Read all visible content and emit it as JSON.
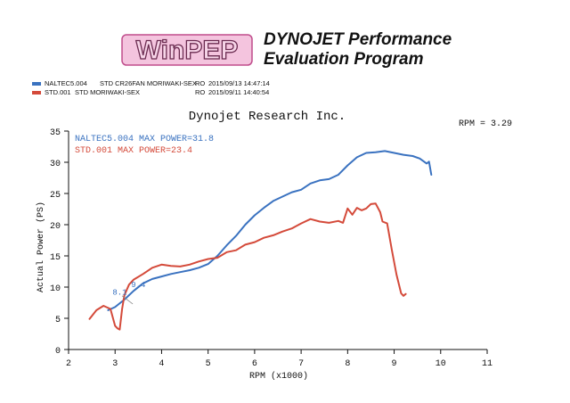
{
  "header": {
    "logo_text": "WinPEP",
    "subtitle_line1": "DYNOJET Performance",
    "subtitle_line2": "Evaluation Program"
  },
  "runs": [
    {
      "file": "NALTEC5.004",
      "desc": "STD CR26FAN MORIWAKI-SEX",
      "code": "RO",
      "date": "2015/09/13 14:47:14",
      "color": "#3a72c0"
    },
    {
      "file": "STD.001",
      "desc": "STD MORIWAKI-SEX",
      "code": "RO",
      "date": "2015/09/11 14:40:54",
      "color": "#d44a3a"
    }
  ],
  "chart_data": {
    "type": "line",
    "title": "Dynojet  Research  Inc.",
    "rpm_readout": "RPM = 3.29",
    "xlabel": "RPM (x1000)",
    "ylabel": "Actual Power (PS)",
    "xlim": [
      2,
      11
    ],
    "ylim": [
      0,
      35
    ],
    "xticks": [
      2,
      3,
      4,
      5,
      6,
      7,
      8,
      9,
      10,
      11
    ],
    "yticks": [
      0,
      5,
      10,
      15,
      20,
      25,
      30,
      35
    ],
    "grid": false,
    "legend": [
      {
        "label": "NALTEC5.004  MAX POWER=31.8",
        "color": "#3a72c0"
      },
      {
        "label": "STD.001  MAX POWER=23.4",
        "color": "#d44a3a"
      }
    ],
    "annotations": [
      {
        "text": "9.4",
        "x": 3.5,
        "y": 10.0,
        "color": "#3a72c0"
      },
      {
        "text": "8.1",
        "x": 3.1,
        "y": 8.8,
        "color": "#3a72c0"
      }
    ],
    "series": [
      {
        "name": "NALTEC5.004",
        "color": "#3a72c0",
        "x": [
          2.85,
          3.0,
          3.2,
          3.4,
          3.6,
          3.8,
          4.0,
          4.2,
          4.4,
          4.6,
          4.8,
          5.0,
          5.2,
          5.4,
          5.6,
          5.8,
          6.0,
          6.2,
          6.4,
          6.6,
          6.8,
          7.0,
          7.2,
          7.4,
          7.6,
          7.8,
          8.0,
          8.2,
          8.4,
          8.6,
          8.8,
          9.0,
          9.2,
          9.4,
          9.55,
          9.7,
          9.75,
          9.8
        ],
        "y": [
          6.3,
          6.8,
          8.0,
          9.4,
          10.6,
          11.3,
          11.7,
          12.1,
          12.4,
          12.7,
          13.1,
          13.7,
          15.0,
          16.7,
          18.2,
          20.0,
          21.5,
          22.7,
          23.8,
          24.5,
          25.2,
          25.6,
          26.6,
          27.1,
          27.3,
          28.0,
          29.5,
          30.8,
          31.5,
          31.6,
          31.8,
          31.5,
          31.2,
          31.0,
          30.6,
          29.8,
          30.1,
          28.0
        ]
      },
      {
        "name": "STD.001",
        "color": "#d44a3a",
        "x": [
          2.45,
          2.6,
          2.75,
          2.9,
          3.0,
          3.05,
          3.1,
          3.15,
          3.2,
          3.3,
          3.4,
          3.6,
          3.8,
          4.0,
          4.2,
          4.4,
          4.6,
          4.8,
          5.0,
          5.2,
          5.4,
          5.6,
          5.8,
          6.0,
          6.2,
          6.4,
          6.6,
          6.8,
          7.0,
          7.2,
          7.4,
          7.6,
          7.8,
          7.9,
          8.0,
          8.1,
          8.2,
          8.3,
          8.4,
          8.5,
          8.6,
          8.7,
          8.75,
          8.85,
          8.95,
          9.05,
          9.15,
          9.2,
          9.25
        ],
        "y": [
          4.9,
          6.3,
          7.0,
          6.5,
          3.8,
          3.4,
          3.2,
          6.5,
          8.7,
          10.4,
          11.2,
          12.1,
          13.1,
          13.6,
          13.4,
          13.3,
          13.6,
          14.1,
          14.5,
          14.7,
          15.6,
          15.9,
          16.8,
          17.2,
          17.9,
          18.3,
          18.9,
          19.4,
          20.2,
          20.9,
          20.5,
          20.3,
          20.6,
          20.3,
          22.6,
          21.6,
          22.7,
          22.3,
          22.6,
          23.3,
          23.4,
          22.0,
          20.5,
          20.2,
          16.0,
          12.0,
          9.0,
          8.6,
          8.9
        ]
      }
    ]
  }
}
